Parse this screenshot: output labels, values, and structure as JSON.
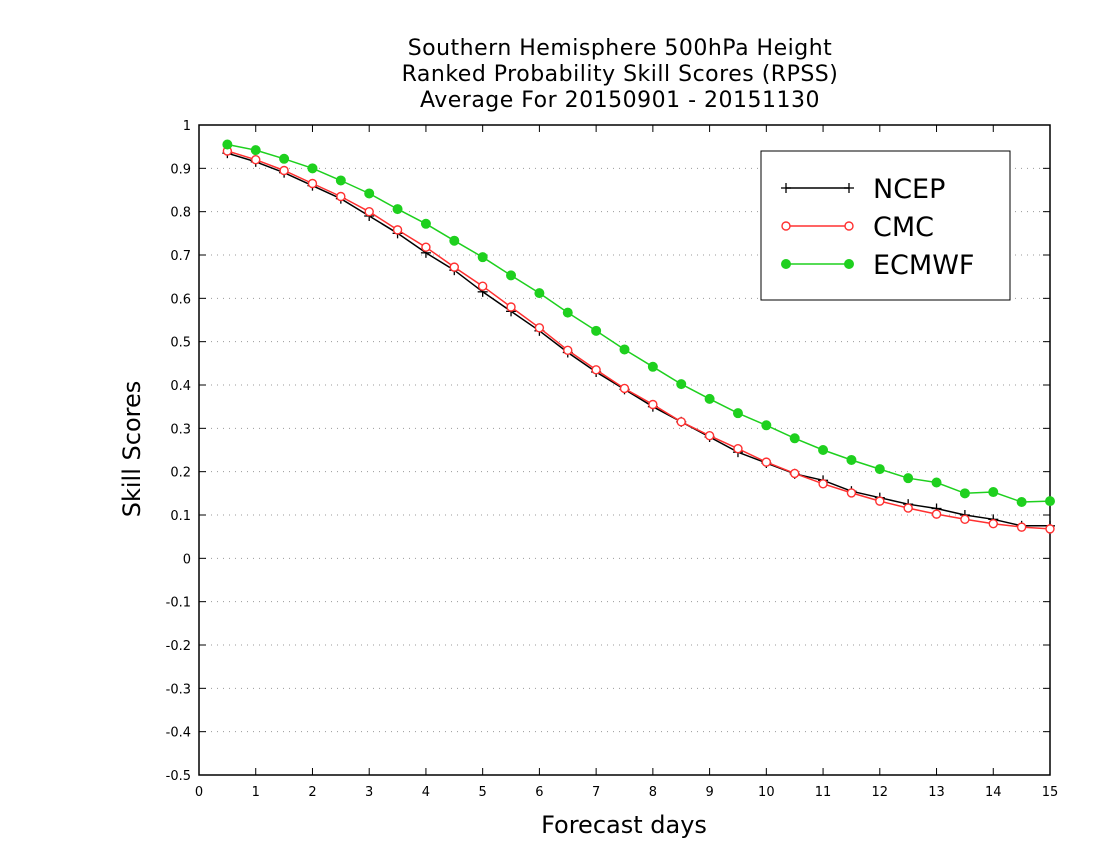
{
  "title_lines": [
    "Southern Hemisphere 500hPa Height",
    "Ranked Probability Skill Scores (RPSS)",
    "Average For 20150901 - 20151130"
  ],
  "chart_data": {
    "type": "line",
    "title": "Southern Hemisphere 500hPa Height Ranked Probability Skill Scores (RPSS) Average For 20150901 - 20151130",
    "xlabel": "Forecast days",
    "ylabel": "Skill Scores",
    "xlim": [
      0,
      15
    ],
    "ylim": [
      -0.5,
      1
    ],
    "xticks": [
      "0",
      "1",
      "2",
      "3",
      "4",
      "5",
      "6",
      "7",
      "8",
      "9",
      "10",
      "11",
      "12",
      "13",
      "14",
      "15"
    ],
    "yticks": [
      "-0.5",
      "-0.4",
      "-0.3",
      "-0.2",
      "-0.1",
      "0",
      "0.1",
      "0.2",
      "0.3",
      "0.4",
      "0.5",
      "0.6",
      "0.7",
      "0.8",
      "0.9",
      "1"
    ],
    "grid": "horizontal dotted",
    "legend_position": "top-right",
    "x": [
      0.5,
      1,
      1.5,
      2,
      2.5,
      3,
      3.5,
      4,
      4.5,
      5,
      5.5,
      6,
      6.5,
      7,
      7.5,
      8,
      8.5,
      9,
      9.5,
      10,
      10.5,
      11,
      11.5,
      12,
      12.5,
      13,
      13.5,
      14,
      14.5,
      15
    ],
    "series": [
      {
        "name": "NCEP",
        "color": "#000000",
        "marker": "plus",
        "values": [
          0.935,
          0.915,
          0.89,
          0.86,
          0.83,
          0.79,
          0.75,
          0.705,
          0.665,
          0.615,
          0.57,
          0.525,
          0.475,
          0.43,
          0.39,
          0.35,
          0.315,
          0.28,
          0.245,
          0.22,
          0.195,
          0.18,
          0.155,
          0.14,
          0.125,
          0.115,
          0.1,
          0.09,
          0.075,
          0.075
        ]
      },
      {
        "name": "CMC",
        "color": "#ff3030",
        "marker": "open-circle",
        "values": [
          0.94,
          0.92,
          0.895,
          0.865,
          0.835,
          0.8,
          0.758,
          0.718,
          0.672,
          0.628,
          0.58,
          0.532,
          0.48,
          0.435,
          0.392,
          0.355,
          0.315,
          0.283,
          0.253,
          0.222,
          0.196,
          0.172,
          0.151,
          0.132,
          0.116,
          0.102,
          0.09,
          0.08,
          0.072,
          0.068
        ]
      },
      {
        "name": "ECMWF",
        "color": "#1ed01e",
        "marker": "filled-circle",
        "values": [
          0.955,
          0.942,
          0.922,
          0.9,
          0.872,
          0.842,
          0.806,
          0.772,
          0.733,
          0.695,
          0.653,
          0.612,
          0.567,
          0.525,
          0.482,
          0.442,
          0.402,
          0.368,
          0.335,
          0.307,
          0.277,
          0.25,
          0.227,
          0.206,
          0.185,
          0.175,
          0.15,
          0.153,
          0.13,
          0.132
        ]
      }
    ]
  }
}
